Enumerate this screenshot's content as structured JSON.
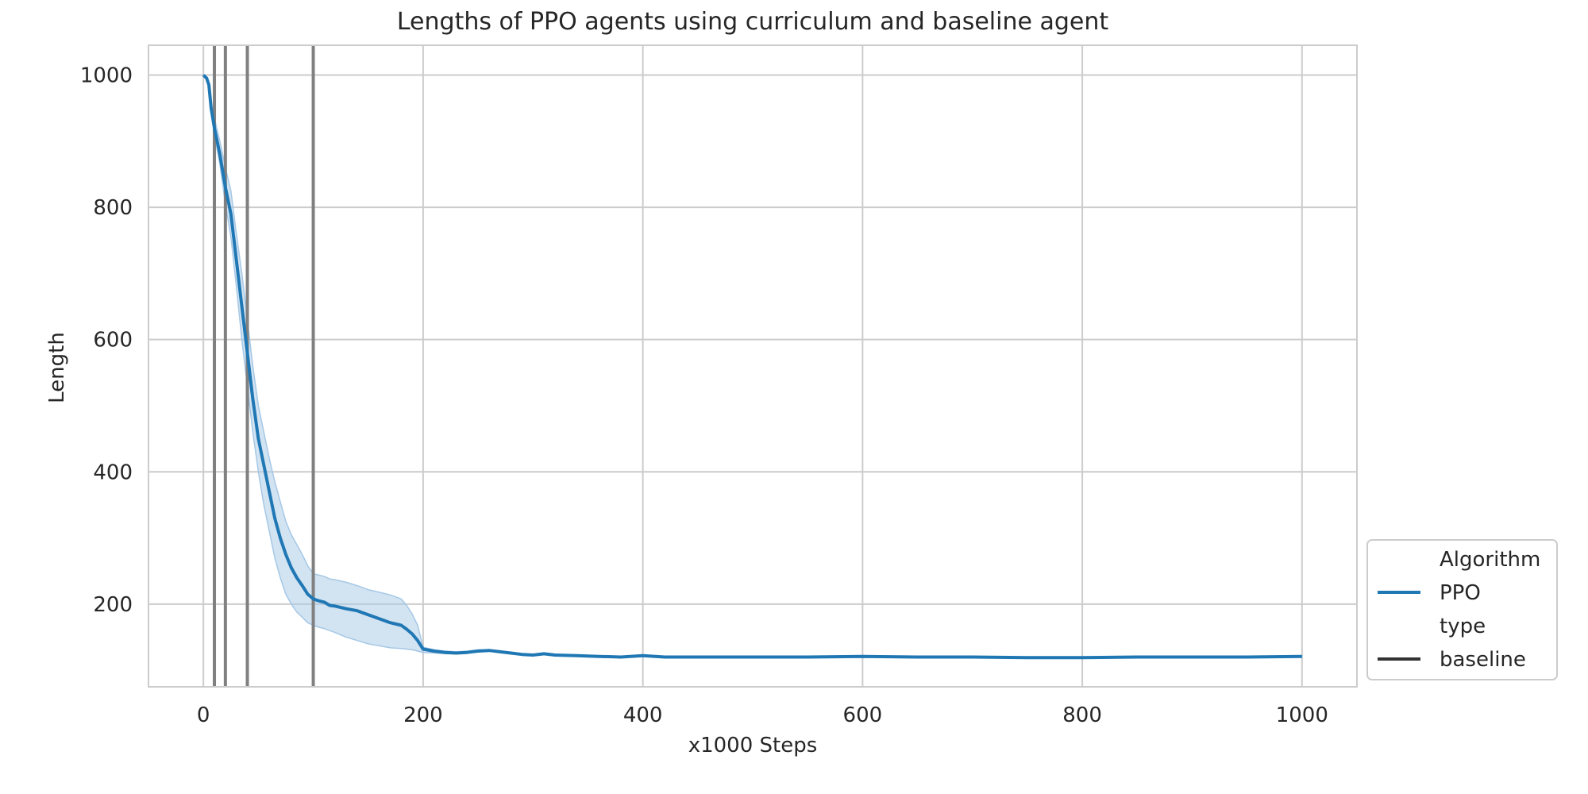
{
  "chart_data": {
    "type": "line",
    "title": "Lengths of PPO agents using curriculum and baseline agent",
    "xlabel": "x1000 Steps",
    "ylabel": "Length",
    "xlim": [
      -50,
      1050
    ],
    "ylim": [
      75,
      1045
    ],
    "grid": true,
    "x_ticks": [
      0,
      200,
      400,
      600,
      800,
      1000
    ],
    "y_ticks": [
      200,
      400,
      600,
      800,
      1000
    ],
    "vertical_lines": [
      10,
      20,
      40,
      100
    ],
    "legend": {
      "placement": "right, outside, bottom",
      "entries": [
        {
          "label": "Algorithm",
          "kind": "header"
        },
        {
          "label": "PPO",
          "kind": "line",
          "color": "#1f77b4"
        },
        {
          "label": "type",
          "kind": "header"
        },
        {
          "label": "baseline",
          "kind": "line",
          "color": "#333333"
        }
      ]
    },
    "series": [
      {
        "name": "PPO",
        "style": "baseline",
        "color": "#1f77b4",
        "band_color": "#a6c8e6",
        "x": [
          0,
          3,
          5,
          7,
          10,
          15,
          20,
          25,
          30,
          35,
          40,
          45,
          50,
          55,
          60,
          65,
          70,
          75,
          80,
          85,
          90,
          95,
          100,
          105,
          110,
          115,
          120,
          130,
          140,
          150,
          160,
          170,
          180,
          185,
          190,
          195,
          200,
          210,
          220,
          230,
          240,
          250,
          260,
          270,
          280,
          290,
          300,
          310,
          320,
          340,
          360,
          380,
          400,
          420,
          450,
          500,
          550,
          600,
          650,
          700,
          750,
          800,
          850,
          900,
          950,
          1000
        ],
        "y": [
          1000,
          995,
          985,
          950,
          920,
          880,
          830,
          790,
          720,
          650,
          580,
          510,
          450,
          410,
          370,
          330,
          300,
          275,
          255,
          240,
          228,
          215,
          208,
          205,
          203,
          198,
          197,
          193,
          190,
          184,
          178,
          172,
          168,
          162,
          155,
          145,
          132,
          129,
          127,
          126,
          127,
          129,
          130,
          128,
          126,
          124,
          123,
          125,
          123,
          122,
          121,
          120,
          122,
          120,
          120,
          120,
          120,
          121,
          120,
          120,
          119,
          119,
          120,
          120,
          120,
          121
        ],
        "lower": [
          1000,
          995,
          985,
          950,
          910,
          865,
          805,
          755,
          680,
          600,
          530,
          460,
          400,
          350,
          310,
          270,
          240,
          215,
          200,
          188,
          180,
          172,
          168,
          165,
          163,
          160,
          157,
          150,
          145,
          140,
          137,
          134,
          133,
          132,
          131,
          129,
          127,
          126,
          125,
          125,
          126,
          128,
          129,
          127,
          125,
          123,
          122,
          124,
          122,
          121,
          120,
          119,
          121,
          119,
          119,
          119,
          119,
          120,
          119,
          119,
          118,
          118,
          119,
          119,
          119,
          120
        ],
        "upper": [
          1000,
          995,
          985,
          955,
          935,
          900,
          860,
          825,
          760,
          700,
          630,
          560,
          500,
          460,
          420,
          385,
          355,
          325,
          305,
          290,
          275,
          258,
          246,
          244,
          242,
          238,
          237,
          233,
          228,
          222,
          218,
          214,
          208,
          198,
          185,
          168,
          135,
          131,
          129,
          128,
          129,
          131,
          131,
          129,
          127,
          125,
          124,
          126,
          124,
          123,
          122,
          121,
          123,
          121,
          121,
          121,
          121,
          122,
          121,
          121,
          120,
          120,
          121,
          121,
          121,
          122
        ]
      }
    ]
  }
}
